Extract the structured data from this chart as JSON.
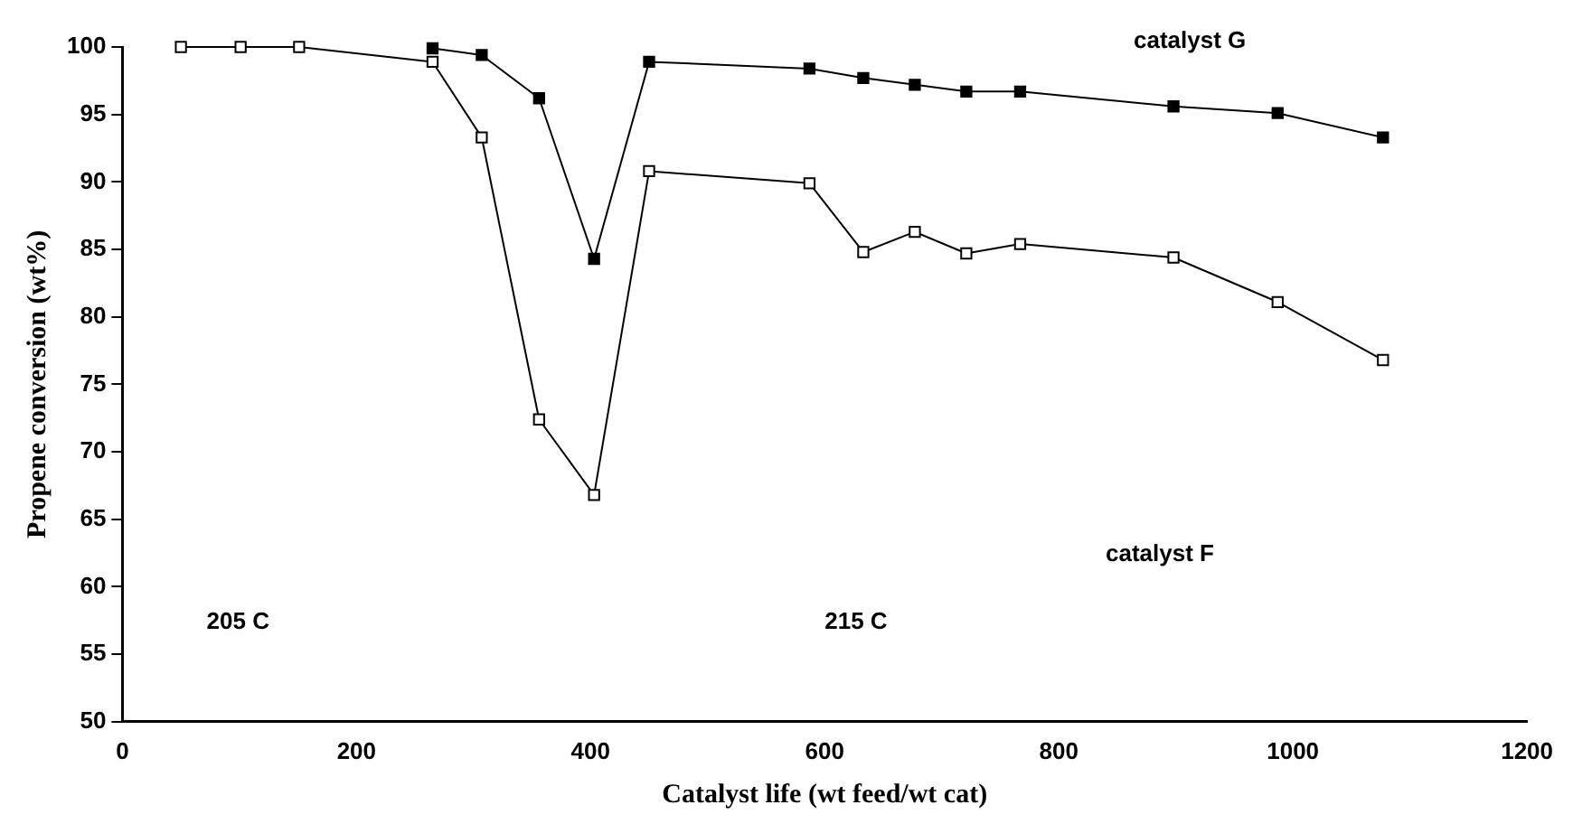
{
  "chart_data": {
    "type": "line",
    "xlabel": "Catalyst life (wt feed/wt cat)",
    "ylabel": "Propene conversion (wt%)",
    "xlim": [
      0,
      1200
    ],
    "xticks": [
      0,
      200,
      400,
      600,
      800,
      1000,
      1200
    ],
    "ylim": [
      50,
      100
    ],
    "yticks": [
      50,
      55,
      60,
      65,
      70,
      75,
      80,
      85,
      90,
      95,
      100
    ],
    "grid": false,
    "legend": false,
    "marker": "square",
    "line_style": "solid",
    "annotations": [
      "catalyst G",
      "catalyst F",
      "205 C",
      "215 C"
    ],
    "series": [
      {
        "color": "#000000",
        "x": [
          265,
          307,
          356,
          403,
          450,
          587,
          633,
          677,
          721,
          767,
          898,
          987,
          1077
        ],
        "values": [
          99.9,
          99.4,
          96.2,
          84.3,
          98.9,
          98.4,
          97.7,
          97.2,
          96.7,
          96.7,
          95.6,
          95.1,
          93.3
        ]
      },
      {
        "color": "#000000",
        "x": [
          50,
          101,
          151,
          265,
          307,
          356,
          403,
          450,
          587,
          633,
          677,
          721,
          767,
          898,
          987,
          1077
        ],
        "values": [
          100,
          100,
          100,
          98.9,
          93.3,
          72.4,
          66.8,
          90.8,
          89.9,
          84.8,
          86.3,
          84.7,
          85.4,
          84.4,
          81.1,
          76.8
        ]
      }
    ]
  }
}
